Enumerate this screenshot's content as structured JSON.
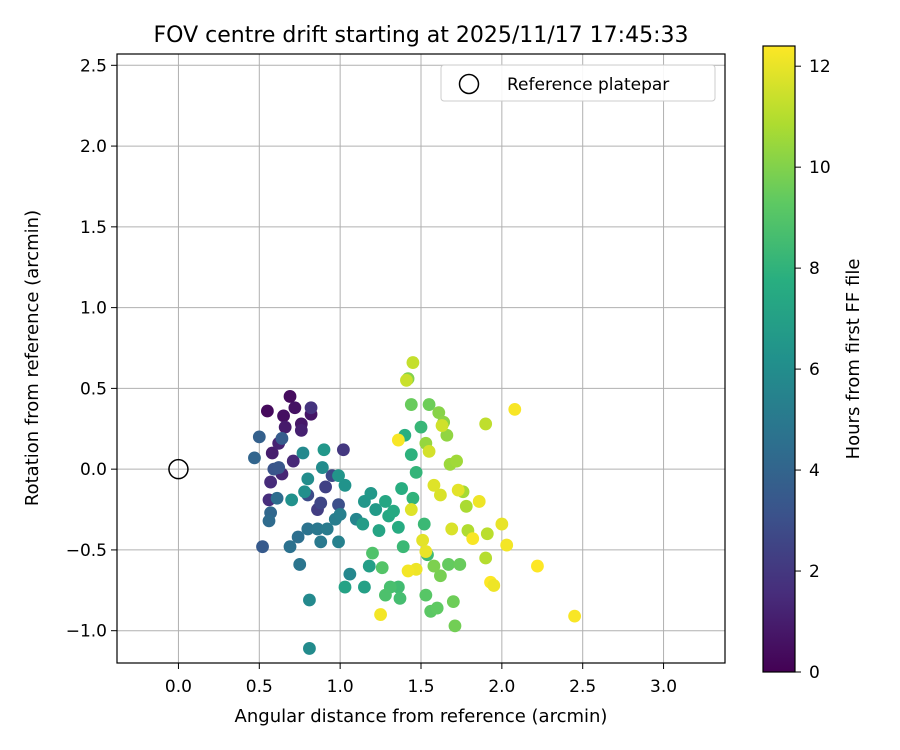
{
  "chart_data": {
    "type": "scatter",
    "title": "FOV centre drift starting at 2025/11/17 17:45:33",
    "xlabel": "Angular distance from reference (arcmin)",
    "ylabel": "Rotation from reference (arcmin)",
    "xlim": [
      -0.38,
      3.38
    ],
    "ylim": [
      -1.2,
      2.57
    ],
    "xticks": [
      0.0,
      0.5,
      1.0,
      1.5,
      2.0,
      2.5,
      3.0
    ],
    "xtick_labels": [
      "0.0",
      "0.5",
      "1.0",
      "1.5",
      "2.0",
      "2.5",
      "3.0"
    ],
    "yticks": [
      -1.0,
      -0.5,
      0.0,
      0.5,
      1.0,
      1.5,
      2.0,
      2.5
    ],
    "ytick_labels": [
      "−1.0",
      "−0.5",
      "0.0",
      "0.5",
      "1.0",
      "1.5",
      "2.0",
      "2.5"
    ],
    "grid": true,
    "legend": {
      "position": "top-right",
      "entries": [
        "Reference platepar"
      ]
    },
    "reference_point": {
      "x": 0.0,
      "y": 0.0
    },
    "colorbar": {
      "label": "Hours from first FF file",
      "range": [
        0,
        12.4
      ],
      "ticks": [
        0,
        2,
        4,
        6,
        8,
        10,
        12
      ],
      "tick_labels": [
        "0",
        "2",
        "4",
        "6",
        "8",
        "10",
        "12"
      ],
      "colormap": "viridis"
    },
    "points": [
      {
        "x": 0.55,
        "y": 0.36,
        "h": 0.3
      },
      {
        "x": 0.69,
        "y": 0.45,
        "h": 0.4
      },
      {
        "x": 0.72,
        "y": 0.38,
        "h": 0.6
      },
      {
        "x": 0.65,
        "y": 0.33,
        "h": 0.5
      },
      {
        "x": 0.76,
        "y": 0.28,
        "h": 0.8
      },
      {
        "x": 0.82,
        "y": 0.34,
        "h": 0.7
      },
      {
        "x": 0.58,
        "y": 0.1,
        "h": 1.0
      },
      {
        "x": 0.62,
        "y": 0.16,
        "h": 1.2
      },
      {
        "x": 0.66,
        "y": 0.26,
        "h": 0.9
      },
      {
        "x": 0.76,
        "y": 0.24,
        "h": 1.1
      },
      {
        "x": 0.64,
        "y": -0.03,
        "h": 1.3
      },
      {
        "x": 0.57,
        "y": -0.08,
        "h": 1.5
      },
      {
        "x": 0.56,
        "y": -0.19,
        "h": 1.6
      },
      {
        "x": 0.71,
        "y": 0.05,
        "h": 1.4
      },
      {
        "x": 0.82,
        "y": 0.38,
        "h": 1.8
      },
      {
        "x": 1.02,
        "y": 0.12,
        "h": 2.0
      },
      {
        "x": 0.86,
        "y": -0.25,
        "h": 2.2
      },
      {
        "x": 0.91,
        "y": -0.11,
        "h": 2.4
      },
      {
        "x": 0.88,
        "y": -0.21,
        "h": 2.6
      },
      {
        "x": 0.8,
        "y": -0.16,
        "h": 2.8
      },
      {
        "x": 0.95,
        "y": -0.04,
        "h": 2.7
      },
      {
        "x": 0.99,
        "y": -0.22,
        "h": 3.0
      },
      {
        "x": 0.59,
        "y": 0.0,
        "h": 3.2
      },
      {
        "x": 0.62,
        "y": 0.01,
        "h": 3.3
      },
      {
        "x": 0.52,
        "y": -0.48,
        "h": 3.5
      },
      {
        "x": 0.64,
        "y": 0.19,
        "h": 3.6
      },
      {
        "x": 0.5,
        "y": 0.2,
        "h": 3.8
      },
      {
        "x": 0.47,
        "y": 0.07,
        "h": 4.0
      },
      {
        "x": 0.57,
        "y": -0.27,
        "h": 4.1
      },
      {
        "x": 0.56,
        "y": -0.32,
        "h": 4.3
      },
      {
        "x": 0.61,
        "y": -0.18,
        "h": 4.4
      },
      {
        "x": 0.74,
        "y": -0.42,
        "h": 4.5
      },
      {
        "x": 0.69,
        "y": -0.48,
        "h": 4.6
      },
      {
        "x": 0.75,
        "y": -0.59,
        "h": 4.8
      },
      {
        "x": 0.8,
        "y": -0.37,
        "h": 4.7
      },
      {
        "x": 0.86,
        "y": -0.37,
        "h": 4.9
      },
      {
        "x": 0.88,
        "y": -0.45,
        "h": 5.0
      },
      {
        "x": 0.92,
        "y": -0.37,
        "h": 5.1
      },
      {
        "x": 0.97,
        "y": -0.31,
        "h": 5.2
      },
      {
        "x": 1.0,
        "y": -0.28,
        "h": 5.3
      },
      {
        "x": 0.99,
        "y": -0.45,
        "h": 5.4
      },
      {
        "x": 1.1,
        "y": -0.31,
        "h": 5.6
      },
      {
        "x": 1.06,
        "y": -0.65,
        "h": 5.7
      },
      {
        "x": 0.81,
        "y": -0.81,
        "h": 5.8
      },
      {
        "x": 0.81,
        "y": -1.11,
        "h": 5.9
      },
      {
        "x": 0.77,
        "y": 0.1,
        "h": 5.8
      },
      {
        "x": 0.89,
        "y": 0.01,
        "h": 5.9
      },
      {
        "x": 0.8,
        "y": -0.06,
        "h": 6.0
      },
      {
        "x": 0.78,
        "y": -0.14,
        "h": 6.1
      },
      {
        "x": 0.7,
        "y": -0.19,
        "h": 6.2
      },
      {
        "x": 1.03,
        "y": -0.1,
        "h": 6.3
      },
      {
        "x": 0.99,
        "y": -0.04,
        "h": 6.4
      },
      {
        "x": 1.15,
        "y": -0.2,
        "h": 6.5
      },
      {
        "x": 1.19,
        "y": -0.15,
        "h": 6.6
      },
      {
        "x": 1.22,
        "y": -0.25,
        "h": 6.7
      },
      {
        "x": 1.14,
        "y": -0.34,
        "h": 6.8
      },
      {
        "x": 1.18,
        "y": -0.6,
        "h": 6.9
      },
      {
        "x": 1.15,
        "y": -0.73,
        "h": 7.0
      },
      {
        "x": 1.03,
        "y": -0.73,
        "h": 7.1
      },
      {
        "x": 0.9,
        "y": 0.12,
        "h": 6.5
      },
      {
        "x": 1.24,
        "y": -0.38,
        "h": 7.2
      },
      {
        "x": 1.28,
        "y": -0.2,
        "h": 7.3
      },
      {
        "x": 1.3,
        "y": -0.29,
        "h": 7.4
      },
      {
        "x": 1.33,
        "y": -0.26,
        "h": 7.5
      },
      {
        "x": 1.36,
        "y": -0.36,
        "h": 7.6
      },
      {
        "x": 1.38,
        "y": -0.12,
        "h": 7.7
      },
      {
        "x": 1.4,
        "y": 0.21,
        "h": 7.8
      },
      {
        "x": 1.44,
        "y": 0.09,
        "h": 7.9
      },
      {
        "x": 1.45,
        "y": -0.18,
        "h": 8.0
      },
      {
        "x": 1.47,
        "y": -0.02,
        "h": 8.1
      },
      {
        "x": 1.5,
        "y": 0.26,
        "h": 8.2
      },
      {
        "x": 1.52,
        "y": -0.34,
        "h": 8.3
      },
      {
        "x": 1.54,
        "y": -0.53,
        "h": 8.4
      },
      {
        "x": 1.39,
        "y": -0.48,
        "h": 8.3
      },
      {
        "x": 1.36,
        "y": -0.73,
        "h": 8.5
      },
      {
        "x": 1.37,
        "y": -0.8,
        "h": 8.6
      },
      {
        "x": 1.31,
        "y": -0.73,
        "h": 8.7
      },
      {
        "x": 1.28,
        "y": -0.78,
        "h": 8.8
      },
      {
        "x": 1.2,
        "y": -0.52,
        "h": 8.9
      },
      {
        "x": 1.26,
        "y": -0.61,
        "h": 9.0
      },
      {
        "x": 1.53,
        "y": -0.78,
        "h": 9.1
      },
      {
        "x": 1.56,
        "y": -0.88,
        "h": 9.2
      },
      {
        "x": 1.6,
        "y": -0.86,
        "h": 9.3
      },
      {
        "x": 1.67,
        "y": -0.59,
        "h": 9.4
      },
      {
        "x": 1.74,
        "y": -0.59,
        "h": 9.5
      },
      {
        "x": 1.7,
        "y": -0.82,
        "h": 9.6
      },
      {
        "x": 1.71,
        "y": -0.97,
        "h": 9.7
      },
      {
        "x": 1.62,
        "y": -0.66,
        "h": 9.8
      },
      {
        "x": 1.58,
        "y": -0.6,
        "h": 9.9
      },
      {
        "x": 1.55,
        "y": 0.4,
        "h": 9.6
      },
      {
        "x": 1.44,
        "y": 0.4,
        "h": 9.5
      },
      {
        "x": 1.42,
        "y": 0.56,
        "h": 10.0
      },
      {
        "x": 1.61,
        "y": 0.35,
        "h": 10.1
      },
      {
        "x": 1.64,
        "y": 0.29,
        "h": 10.2
      },
      {
        "x": 1.66,
        "y": 0.21,
        "h": 10.3
      },
      {
        "x": 1.53,
        "y": 0.16,
        "h": 10.4
      },
      {
        "x": 1.68,
        "y": 0.03,
        "h": 10.5
      },
      {
        "x": 1.72,
        "y": 0.05,
        "h": 10.6
      },
      {
        "x": 1.76,
        "y": -0.14,
        "h": 10.7
      },
      {
        "x": 1.78,
        "y": -0.23,
        "h": 10.8
      },
      {
        "x": 1.79,
        "y": -0.38,
        "h": 10.9
      },
      {
        "x": 1.9,
        "y": -0.55,
        "h": 11.0
      },
      {
        "x": 1.91,
        "y": -0.4,
        "h": 11.1
      },
      {
        "x": 1.9,
        "y": 0.28,
        "h": 11.2
      },
      {
        "x": 1.45,
        "y": 0.66,
        "h": 11.3
      },
      {
        "x": 1.41,
        "y": 0.55,
        "h": 11.4
      },
      {
        "x": 1.63,
        "y": 0.27,
        "h": 11.5
      },
      {
        "x": 1.55,
        "y": 0.11,
        "h": 11.6
      },
      {
        "x": 1.62,
        "y": -0.16,
        "h": 11.7
      },
      {
        "x": 1.44,
        "y": -0.25,
        "h": 11.8
      },
      {
        "x": 1.51,
        "y": -0.44,
        "h": 11.9
      },
      {
        "x": 1.53,
        "y": -0.51,
        "h": 12.0
      },
      {
        "x": 1.47,
        "y": -0.62,
        "h": 12.1
      },
      {
        "x": 1.42,
        "y": -0.63,
        "h": 12.2
      },
      {
        "x": 1.36,
        "y": 0.18,
        "h": 12.3
      },
      {
        "x": 1.25,
        "y": -0.9,
        "h": 12.2
      },
      {
        "x": 1.82,
        "y": -0.43,
        "h": 12.3
      },
      {
        "x": 1.93,
        "y": -0.7,
        "h": 12.4
      },
      {
        "x": 1.95,
        "y": -0.72,
        "h": 12.1
      },
      {
        "x": 2.0,
        "y": -0.34,
        "h": 12.0
      },
      {
        "x": 2.03,
        "y": -0.47,
        "h": 12.2
      },
      {
        "x": 2.08,
        "y": 0.37,
        "h": 12.3
      },
      {
        "x": 2.22,
        "y": -0.6,
        "h": 12.4
      },
      {
        "x": 2.45,
        "y": -0.91,
        "h": 12.3
      },
      {
        "x": 1.86,
        "y": -0.2,
        "h": 12.1
      },
      {
        "x": 1.73,
        "y": -0.13,
        "h": 11.9
      },
      {
        "x": 1.69,
        "y": -0.37,
        "h": 11.7
      },
      {
        "x": 1.58,
        "y": -0.1,
        "h": 11.8
      }
    ]
  }
}
